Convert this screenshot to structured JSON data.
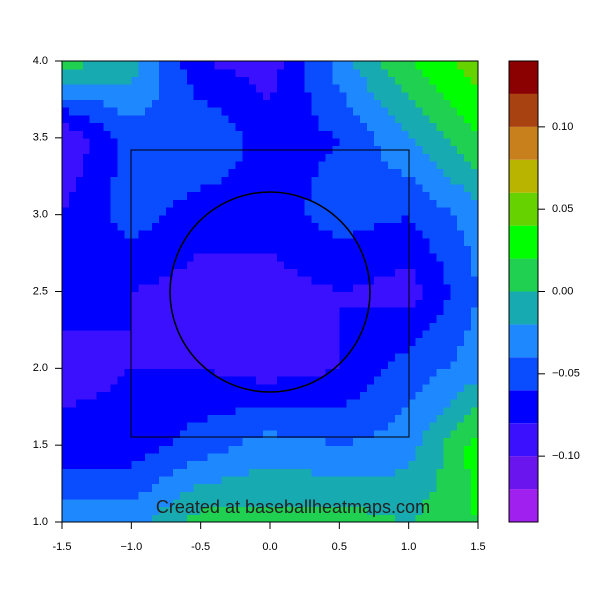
{
  "chart_data": {
    "type": "contour",
    "annotation": "Created at baseballheatmaps.com",
    "x": [
      -1.5,
      -1.0,
      -0.5,
      0.0,
      0.5,
      1.0,
      1.5
    ],
    "y": [
      1.0,
      1.5,
      2.0,
      2.5,
      3.0,
      3.5,
      4.0
    ],
    "z": [
      [
        -0.03,
        -0.03,
        0.01,
        0.01,
        0.01,
        0.0,
        0.02
      ],
      [
        -0.07,
        -0.07,
        -0.05,
        -0.03,
        -0.04,
        -0.03,
        0.03
      ],
      [
        -0.09,
        -0.08,
        -0.08,
        -0.09,
        -0.08,
        -0.05,
        -0.03
      ],
      [
        -0.07,
        -0.08,
        -0.09,
        -0.09,
        -0.08,
        -0.09,
        -0.04
      ],
      [
        -0.08,
        -0.05,
        -0.07,
        -0.07,
        -0.05,
        -0.06,
        -0.03
      ],
      [
        -0.1,
        -0.05,
        -0.04,
        -0.07,
        -0.06,
        -0.02,
        0.02
      ],
      [
        0.01,
        -0.01,
        -0.08,
        -0.09,
        -0.03,
        0.02,
        0.05
      ]
    ],
    "levels": [
      -0.14,
      -0.12,
      -0.1,
      -0.08,
      -0.06,
      -0.04,
      -0.02,
      0.0,
      0.02,
      0.04,
      0.06,
      0.08,
      0.1,
      0.12,
      0.14
    ],
    "colors": [
      "#a020f0",
      "#6a14ee",
      "#3a10ff",
      "#0000ff",
      "#0a4cff",
      "#1e88ff",
      "#17aab0",
      "#20d050",
      "#00ff00",
      "#66d200",
      "#b8b400",
      "#c8801c",
      "#a84210",
      "#8b0000"
    ],
    "xlim": [
      -1.5,
      1.5
    ],
    "ylim": [
      1.0,
      4.0
    ],
    "xticks": [
      -1.5,
      {
        "value": -1,
        "label": "−1.0"
      },
      -0.5,
      {
        "value": 0,
        "label": "0.0"
      },
      0.5,
      {
        "value": 1,
        "label": "1.0"
      },
      1.5
    ],
    "yticks": [
      {
        "value": 1,
        "label": "1.0"
      },
      1.5,
      {
        "value": 2,
        "label": "2.0"
      },
      2.5,
      {
        "value": 3,
        "label": "3.0"
      },
      3.5,
      {
        "value": 4,
        "label": "4.0"
      }
    ],
    "colorbar_ticks": [
      {
        "value": -0.1,
        "label": "−0.10"
      },
      {
        "value": -0.05,
        "label": "−0.05"
      },
      {
        "value": 0,
        "label": "0.00"
      },
      0.05,
      {
        "value": 0.1,
        "label": "0.10"
      }
    ]
  }
}
